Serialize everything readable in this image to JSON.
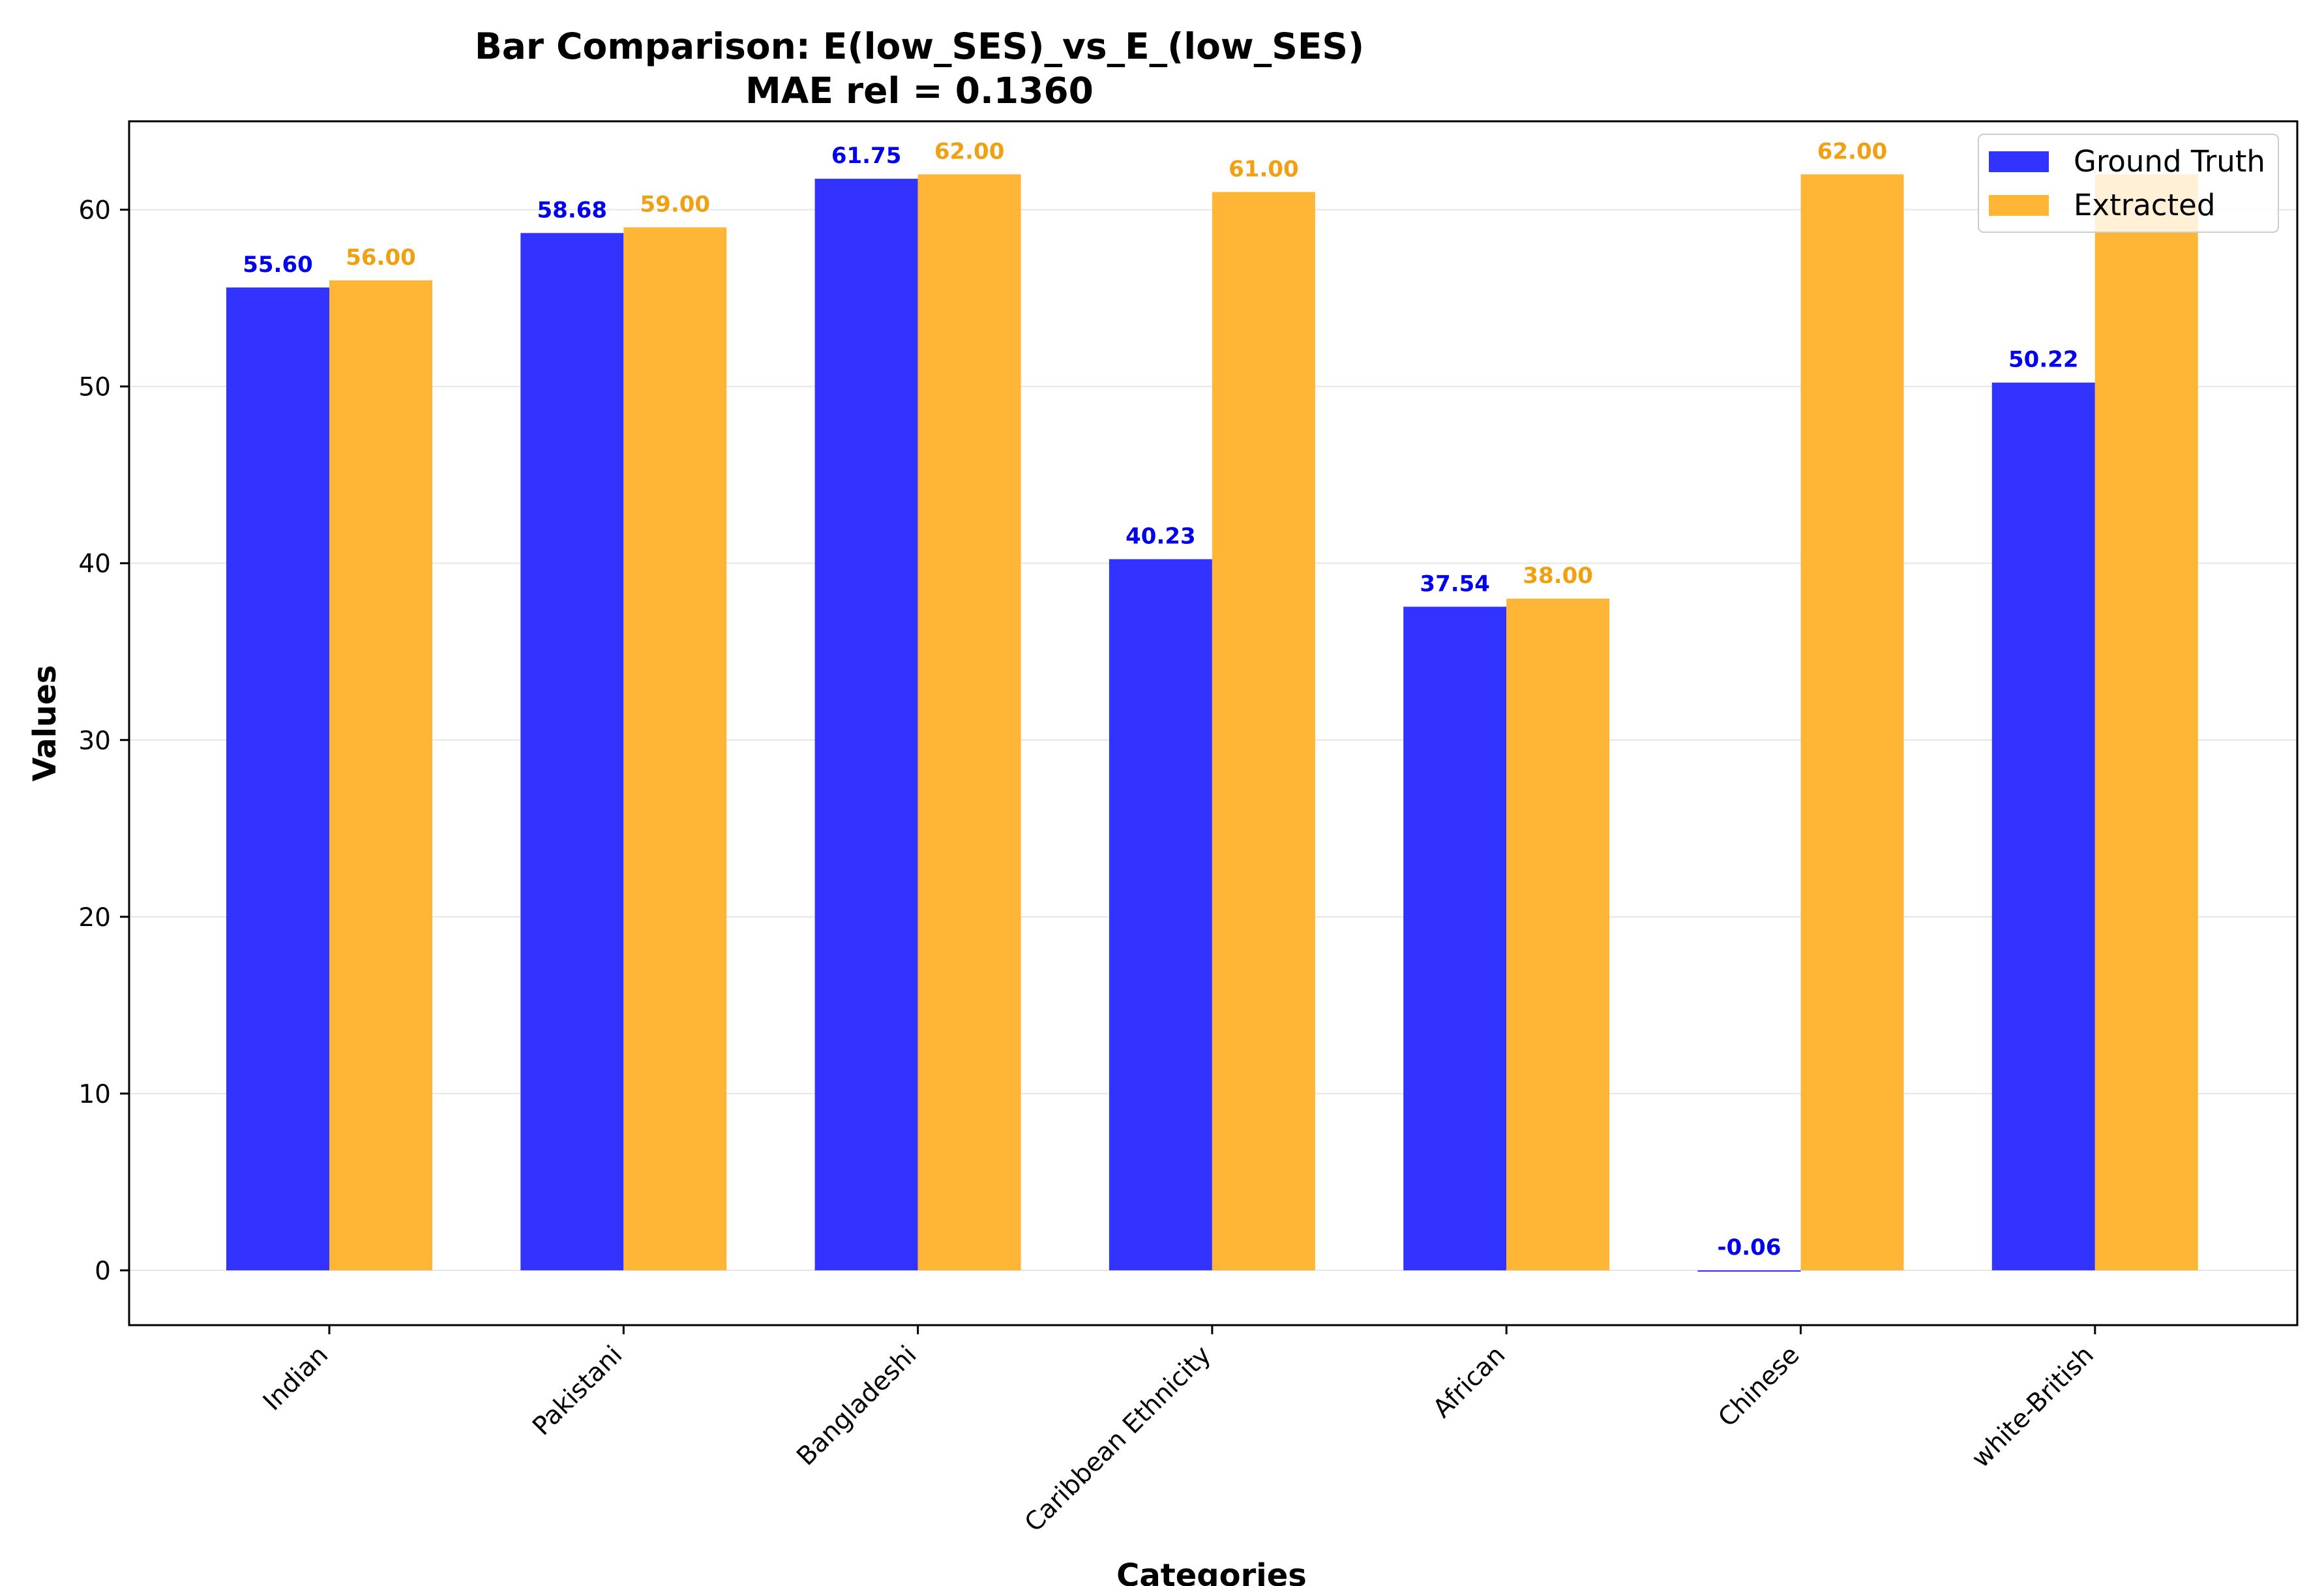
{
  "chart_data": {
    "type": "bar",
    "title": "Bar Comparison: E(low_SES)_vs_E_(low_SES)",
    "subtitle": "MAE rel = 0.1360",
    "xlabel": "Categories",
    "ylabel": "Values",
    "categories": [
      "Indian",
      "Pakistani",
      "Bangladeshi",
      "Caribbean Ethnicity",
      "African",
      "Chinese",
      "white-British"
    ],
    "series": [
      {
        "name": "Ground Truth",
        "color": "#3333ff",
        "label_color": "#0000ee",
        "values": [
          55.6,
          58.68,
          61.75,
          40.23,
          37.54,
          -0.06,
          50.22
        ],
        "value_labels": [
          "55.60",
          "58.68",
          "61.75",
          "40.23",
          "37.54",
          "-0.06",
          "50.22"
        ]
      },
      {
        "name": "Extracted",
        "color": "#ffb535",
        "label_color": "#f0a010",
        "values": [
          56.0,
          59.0,
          62.0,
          61.0,
          38.0,
          62.0,
          62.0
        ],
        "value_labels": [
          "56.00",
          "59.00",
          "62.00",
          "61.00",
          "38.00",
          "62.00",
          null
        ]
      }
    ],
    "ylim": [
      -3.1,
      65
    ],
    "yticks": [
      0,
      10,
      20,
      30,
      40,
      50,
      60
    ],
    "grid": true,
    "legend_position": "top-right"
  }
}
